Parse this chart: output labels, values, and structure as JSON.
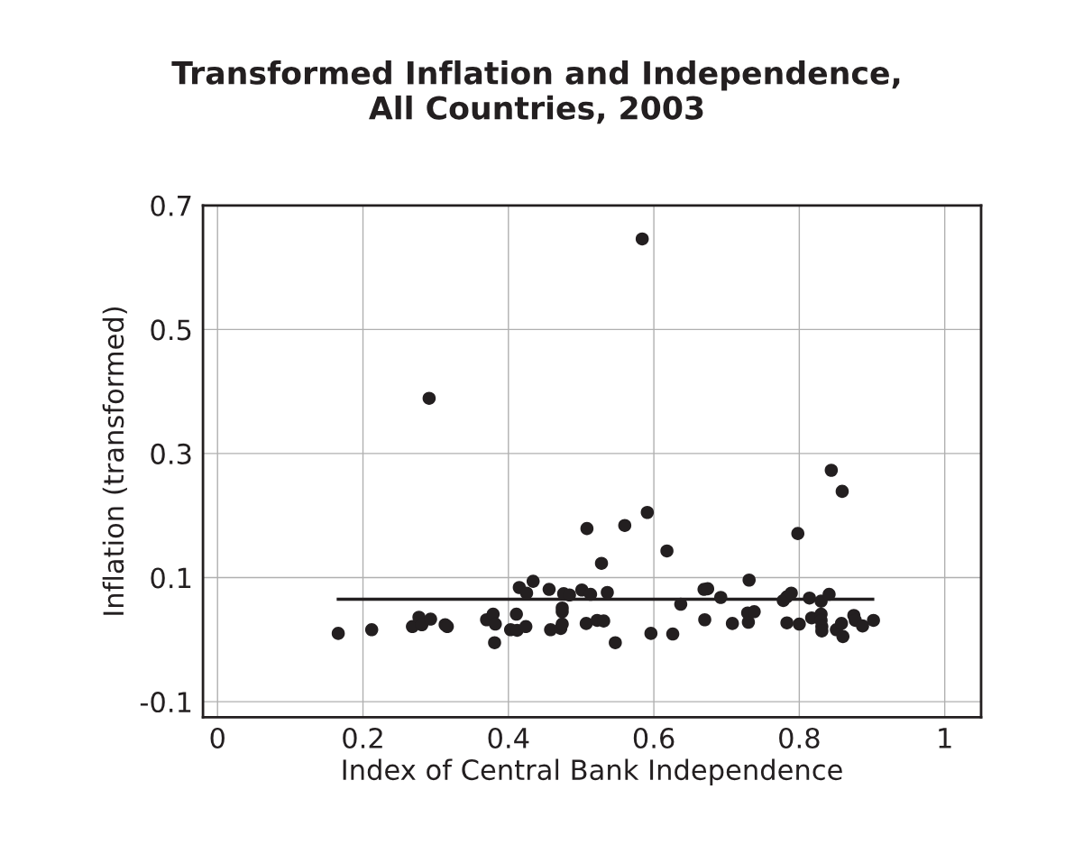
{
  "chart_data": {
    "type": "scatter",
    "title": "Transformed Inflation and Independence,\nAll Countries, 2003",
    "xlabel": "Index of Central Bank Independence",
    "ylabel": "Inflation (transformed)",
    "xlim": [
      -0.02,
      1.05
    ],
    "xticks": [
      0,
      0.2,
      0.4,
      0.6,
      0.8,
      1
    ],
    "ylim": [
      -0.125,
      0.7
    ],
    "yticks": [
      -0.1,
      0.1,
      0.3,
      0.5,
      0.7
    ],
    "grid": true,
    "marker": "circle",
    "series": [
      {
        "color": "#231f20",
        "x": [
          0.166,
          0.212,
          0.268,
          0.277,
          0.281,
          0.293,
          0.291,
          0.313,
          0.316,
          0.37,
          0.379,
          0.382,
          0.381,
          0.403,
          0.412,
          0.411,
          0.424,
          0.415,
          0.425,
          0.434,
          0.456,
          0.458,
          0.472,
          0.474,
          0.474,
          0.474,
          0.476,
          0.484,
          0.501,
          0.508,
          0.513,
          0.507,
          0.522,
          0.531,
          0.528,
          0.536,
          0.547,
          0.56,
          0.584,
          0.591,
          0.596,
          0.618,
          0.626,
          0.637,
          0.669,
          0.674,
          0.67,
          0.692,
          0.708,
          0.73,
          0.731,
          0.729,
          0.738,
          0.778,
          0.783,
          0.789,
          0.783,
          0.798,
          0.8,
          0.814,
          0.817,
          0.83,
          0.83,
          0.83,
          0.831,
          0.831,
          0.841,
          0.844,
          0.851,
          0.859,
          0.86,
          0.858,
          0.875,
          0.877,
          0.887,
          0.902
        ],
        "values": [
          0.01,
          0.016,
          0.021,
          0.036,
          0.024,
          0.033,
          0.389,
          0.024,
          0.021,
          0.032,
          0.041,
          0.025,
          -0.005,
          0.016,
          0.015,
          0.041,
          0.021,
          0.084,
          0.075,
          0.094,
          0.081,
          0.016,
          0.018,
          0.025,
          0.045,
          0.051,
          0.074,
          0.072,
          0.08,
          0.179,
          0.073,
          0.026,
          0.031,
          0.03,
          0.123,
          0.076,
          -0.005,
          0.184,
          0.646,
          0.205,
          0.01,
          0.143,
          0.009,
          0.057,
          0.081,
          0.082,
          0.032,
          0.068,
          0.026,
          0.028,
          0.096,
          0.043,
          0.045,
          0.063,
          0.069,
          0.075,
          0.027,
          0.171,
          0.025,
          0.067,
          0.035,
          0.062,
          0.041,
          0.031,
          0.021,
          0.014,
          0.073,
          0.273,
          0.016,
          0.239,
          0.005,
          0.026,
          0.039,
          0.031,
          0.022,
          0.031
        ]
      },
      {
        "type": "line",
        "color": "#231f20",
        "marker": "none",
        "line_style": "solid",
        "x": [
          0.166,
          0.901
        ],
        "values": [
          0.065,
          0.065
        ]
      }
    ]
  }
}
